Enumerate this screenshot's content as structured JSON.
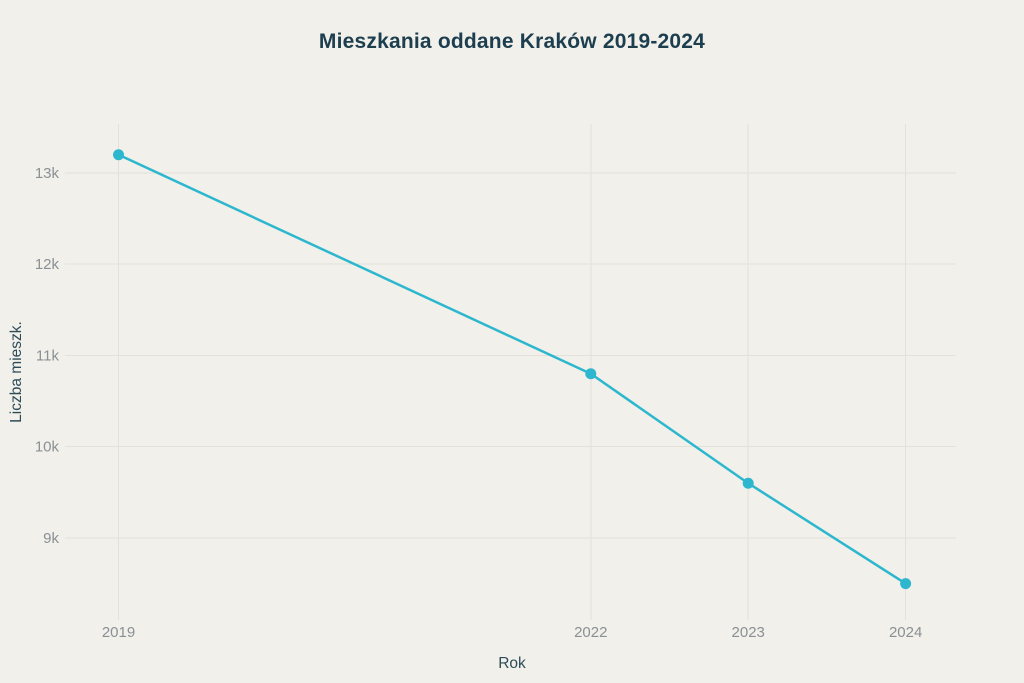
{
  "chart_data": {
    "type": "line",
    "title": "Mieszkania oddane Kraków 2019-2024",
    "xlabel": "Rok",
    "ylabel": "Liczba mieszk.",
    "x": [
      2019,
      2022,
      2023,
      2024
    ],
    "values": [
      13200,
      10800,
      9600,
      8500
    ],
    "x_ticks": [
      {
        "value": 2019,
        "label": "2019"
      },
      {
        "value": 2022,
        "label": "2022"
      },
      {
        "value": 2023,
        "label": "2023"
      },
      {
        "value": 2024,
        "label": "2024"
      }
    ],
    "y_ticks": [
      {
        "value": 13000,
        "label": "13k"
      },
      {
        "value": 12000,
        "label": "12k"
      },
      {
        "value": 11000,
        "label": "11k"
      },
      {
        "value": 10000,
        "label": "10k"
      },
      {
        "value": 9000,
        "label": "9k"
      }
    ],
    "xlim": [
      2018.66,
      2024.32
    ],
    "ylim": [
      8134,
      13537
    ],
    "grid": true,
    "legend": "none",
    "colors": {
      "background": "#f1f0ea",
      "line": "#2db7ce",
      "marker": "#2db7ce",
      "grid": "#e2e1da",
      "title": "#1d3e4e",
      "axis_title": "#2d4c58",
      "tick_label": "#8a9095"
    }
  }
}
